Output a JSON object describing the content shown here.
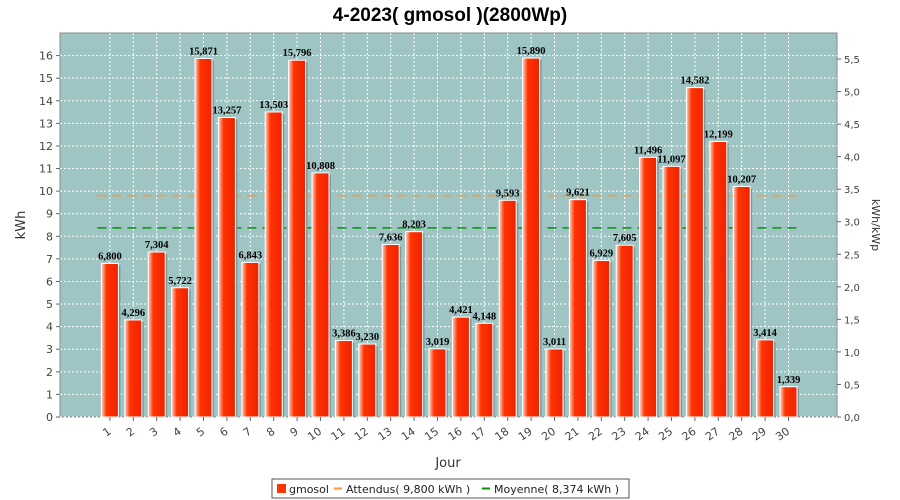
{
  "chart_data": {
    "type": "bar",
    "title": "4-2023( gmosol )(2800Wp)",
    "xlabel": "Jour",
    "ylabel": "kWh",
    "y2label": "kWh/kWp",
    "ylim": [
      0,
      17
    ],
    "y2lim": [
      0,
      5.9
    ],
    "yticks": [
      "0",
      "1",
      "2",
      "3",
      "4",
      "5",
      "6",
      "7",
      "8",
      "9",
      "10",
      "11",
      "12",
      "13",
      "14",
      "15",
      "16"
    ],
    "y2ticks": [
      "0,0",
      "0,5",
      "1,0",
      "1,5",
      "2,0",
      "2,5",
      "3,0",
      "3,5",
      "4,0",
      "4,5",
      "5,0",
      "5,5"
    ],
    "categories": [
      "1",
      "2",
      "3",
      "4",
      "5",
      "6",
      "7",
      "8",
      "9",
      "10",
      "11",
      "12",
      "13",
      "14",
      "15",
      "16",
      "17",
      "18",
      "19",
      "20",
      "21",
      "22",
      "23",
      "24",
      "25",
      "26",
      "27",
      "28",
      "29",
      "30"
    ],
    "series": [
      {
        "name": "gmosol",
        "color": "#ff3300",
        "values": [
          6.8,
          4.296,
          7.304,
          5.722,
          15.871,
          13.257,
          6.843,
          13.503,
          15.796,
          10.808,
          3.386,
          3.23,
          7.636,
          8.203,
          3.019,
          4.421,
          4.148,
          9.593,
          15.89,
          3.011,
          9.621,
          6.929,
          7.605,
          11.496,
          11.097,
          14.582,
          12.199,
          10.207,
          3.414,
          1.339
        ],
        "labels": [
          "6,800",
          "4,296",
          "7,304",
          "5,722",
          "15,871",
          "13,257",
          "6,843",
          "13,503",
          "15,796",
          "10,808",
          "3,386",
          "3,230",
          "7,636",
          "8,203",
          "3,019",
          "4,421",
          "4,148",
          "9,593",
          "15,890",
          "3,011",
          "9,621",
          "6,929",
          "7,605",
          "11,496",
          "11,097",
          "14,582",
          "12,199",
          "10,207",
          "3,414",
          "1,339"
        ]
      }
    ],
    "reference_lines": [
      {
        "name": "Attendus",
        "legend": "Attendus( 9,800 kWh )",
        "value": 9.8,
        "color": "#ff9933"
      },
      {
        "name": "Moyenne",
        "legend": "Moyenne( 8,374 kWh )",
        "value": 8.374,
        "color": "#009900"
      }
    ],
    "legend_position": "bottom",
    "grid": true,
    "plot_background": "#9fc4c4"
  }
}
